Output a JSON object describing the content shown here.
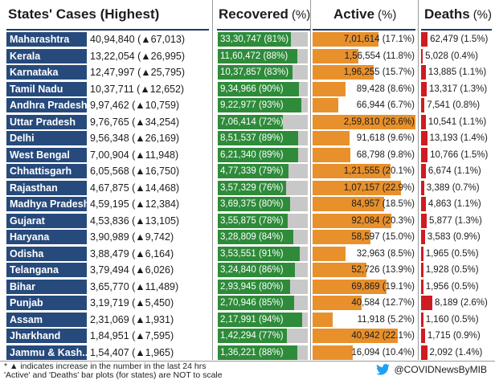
{
  "chart_data": {
    "type": "table",
    "title": "States' Cases (Highest)",
    "columns": [
      {
        "label": "States' Cases (Highest)",
        "suffix": ""
      },
      {
        "label": "Recovered",
        "suffix": "(%)"
      },
      {
        "label": "Active",
        "suffix": "(%)"
      },
      {
        "label": "Deaths",
        "suffix": "(%)"
      }
    ],
    "colors": {
      "recovered": "#2e8b3a",
      "recovered_track": "#c8c8c8",
      "active": "#e8902c",
      "deaths": "#cf1b22",
      "state": "#274a7c"
    },
    "rows": [
      {
        "state": "Maharashtra",
        "cases": "40,94,840 (▲67,013)",
        "recovered": "33,30,747 (81%)",
        "recovered_pct": 81,
        "active": "7,01,614 (17.1%)",
        "active_pct": 17.1,
        "deaths": "62,479 (1.5%)",
        "deaths_pct": 1.5
      },
      {
        "state": "Kerala",
        "cases": "13,22,054 (▲26,995)",
        "recovered": "11,60,472 (88%)",
        "recovered_pct": 88,
        "active": "1,56,554 (11.8%)",
        "active_pct": 11.8,
        "deaths": "5,028 (0.4%)",
        "deaths_pct": 0.4
      },
      {
        "state": "Karnataka",
        "cases": "12,47,997 (▲25,795)",
        "recovered": "10,37,857 (83%)",
        "recovered_pct": 83,
        "active": "1,96,255 (15.7%)",
        "active_pct": 15.7,
        "deaths": "13,885 (1.1%)",
        "deaths_pct": 1.1
      },
      {
        "state": "Tamil Nadu",
        "cases": "10,37,711 (▲12,652)",
        "recovered": "9,34,966 (90%)",
        "recovered_pct": 90,
        "active": "89,428 (8.6%)",
        "active_pct": 8.6,
        "deaths": "13,317 (1.3%)",
        "deaths_pct": 1.3
      },
      {
        "state": "Andhra Pradesh",
        "cases": "9,97,462 (▲10,759)",
        "recovered": "9,22,977 (93%)",
        "recovered_pct": 93,
        "active": "66,944 (6.7%)",
        "active_pct": 6.7,
        "deaths": "7,541 (0.8%)",
        "deaths_pct": 0.8
      },
      {
        "state": "Uttar Pradesh",
        "cases": "9,76,765 (▲34,254)",
        "recovered": "7,06,414 (72%)",
        "recovered_pct": 72,
        "active": "2,59,810 (26.6%)",
        "active_pct": 26.6,
        "deaths": "10,541 (1.1%)",
        "deaths_pct": 1.1
      },
      {
        "state": "Delhi",
        "cases": "9,56,348 (▲26,169)",
        "recovered": "8,51,537 (89%)",
        "recovered_pct": 89,
        "active": "91,618 (9.6%)",
        "active_pct": 9.6,
        "deaths": "13,193 (1.4%)",
        "deaths_pct": 1.4
      },
      {
        "state": "West Bengal",
        "cases": "7,00,904 (▲11,948)",
        "recovered": "6,21,340 (89%)",
        "recovered_pct": 89,
        "active": "68,798 (9.8%)",
        "active_pct": 9.8,
        "deaths": "10,766 (1.5%)",
        "deaths_pct": 1.5
      },
      {
        "state": "Chhattisgarh",
        "cases": "6,05,568 (▲16,750)",
        "recovered": "4,77,339 (79%)",
        "recovered_pct": 79,
        "active": "1,21,555 (20.1%)",
        "active_pct": 20.1,
        "deaths": "6,674 (1.1%)",
        "deaths_pct": 1.1
      },
      {
        "state": "Rajasthan",
        "cases": "4,67,875 (▲14,468)",
        "recovered": "3,57,329 (76%)",
        "recovered_pct": 76,
        "active": "1,07,157 (22.9%)",
        "active_pct": 22.9,
        "deaths": "3,389 (0.7%)",
        "deaths_pct": 0.7
      },
      {
        "state": "Madhya Pradesh",
        "cases": "4,59,195 (▲12,384)",
        "recovered": "3,69,375 (80%)",
        "recovered_pct": 80,
        "active": "84,957 (18.5%)",
        "active_pct": 18.5,
        "deaths": "4,863 (1.1%)",
        "deaths_pct": 1.1
      },
      {
        "state": "Gujarat",
        "cases": "4,53,836 (▲13,105)",
        "recovered": "3,55,875 (78%)",
        "recovered_pct": 78,
        "active": "92,084 (20.3%)",
        "active_pct": 20.3,
        "deaths": "5,877 (1.3%)",
        "deaths_pct": 1.3
      },
      {
        "state": "Haryana",
        "cases": "3,90,989 (▲9,742)",
        "recovered": "3,28,809 (84%)",
        "recovered_pct": 84,
        "active": "58,597 (15.0%)",
        "active_pct": 15.0,
        "deaths": "3,583 (0.9%)",
        "deaths_pct": 0.9
      },
      {
        "state": "Odisha",
        "cases": "3,88,479 (▲6,164)",
        "recovered": "3,53,551 (91%)",
        "recovered_pct": 91,
        "active": "32,963 (8.5%)",
        "active_pct": 8.5,
        "deaths": "1,965 (0.5%)",
        "deaths_pct": 0.5
      },
      {
        "state": "Telangana",
        "cases": "3,79,494 (▲6,026)",
        "recovered": "3,24,840 (86%)",
        "recovered_pct": 86,
        "active": "52,726 (13.9%)",
        "active_pct": 13.9,
        "deaths": "1,928 (0.5%)",
        "deaths_pct": 0.5
      },
      {
        "state": "Bihar",
        "cases": "3,65,770 (▲11,489)",
        "recovered": "2,93,945 (80%)",
        "recovered_pct": 80,
        "active": "69,869 (19.1%)",
        "active_pct": 19.1,
        "deaths": "1,956 (0.5%)",
        "deaths_pct": 0.5
      },
      {
        "state": "Punjab",
        "cases": "3,19,719 (▲5,450)",
        "recovered": "2,70,946 (85%)",
        "recovered_pct": 85,
        "active": "40,584 (12.7%)",
        "active_pct": 12.7,
        "deaths": "8,189 (2.6%)",
        "deaths_pct": 2.6
      },
      {
        "state": "Assam",
        "cases": "2,31,069 (▲1,931)",
        "recovered": "2,17,991 (94%)",
        "recovered_pct": 94,
        "active": "11,918 (5.2%)",
        "active_pct": 5.2,
        "deaths": "1,160 (0.5%)",
        "deaths_pct": 0.5
      },
      {
        "state": "Jharkhand",
        "cases": "1,84,951 (▲7,595)",
        "recovered": "1,42,294 (77%)",
        "recovered_pct": 77,
        "active": "40,942 (22.1%)",
        "active_pct": 22.1,
        "deaths": "1,715 (0.9%)",
        "deaths_pct": 0.9
      },
      {
        "state": "Jammu & Kash..",
        "cases": "1,54,407 (▲1,965)",
        "recovered": "1,36,221 (88%)",
        "recovered_pct": 88,
        "active": "16,094 (10.4%)",
        "active_pct": 10.4,
        "deaths": "2,092 (1.4%)",
        "deaths_pct": 1.4
      }
    ],
    "footnotes": [
      "* ▲ indicates increase in the number in the last 24 hrs",
      "'Active' and 'Deaths' bar plots (for states) are NOT to scale"
    ],
    "credit": "@COVIDNewsByMIB"
  }
}
